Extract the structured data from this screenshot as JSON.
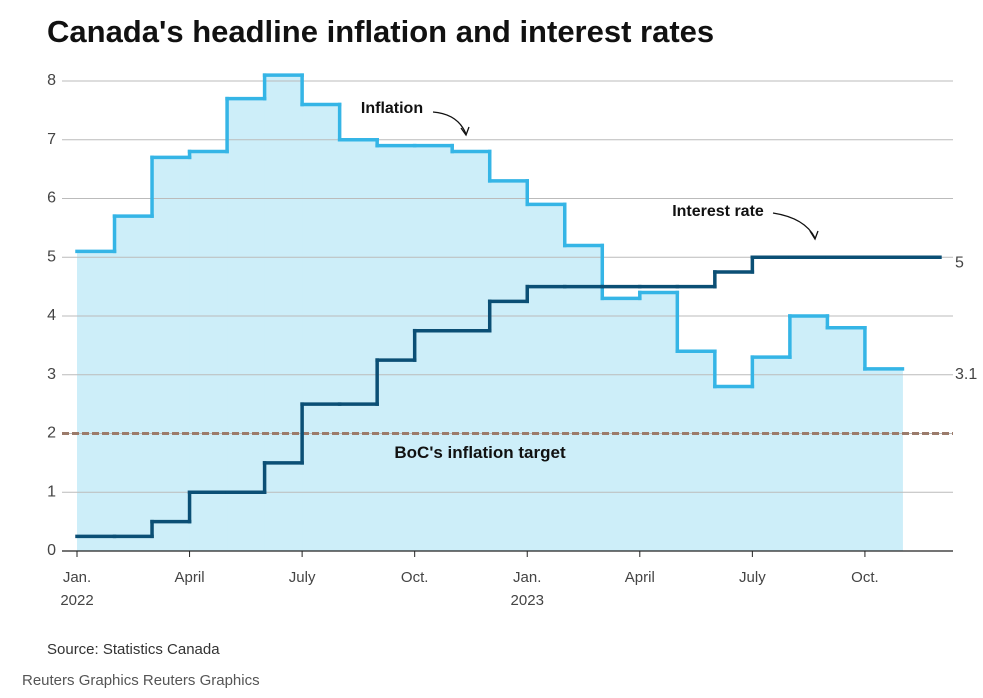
{
  "chart_data": {
    "type": "step",
    "title": "Canada's headline inflation and interest rates",
    "source": "Source: Statistics Canada",
    "credit": "Reuters Graphics Reuters Graphics",
    "categories": [
      "Jan. 2022",
      null,
      null,
      "April",
      null,
      null,
      "July",
      null,
      null,
      "Oct.",
      null,
      null,
      "Jan. 2023",
      null,
      null,
      "April",
      null,
      null,
      "July",
      null,
      null,
      "Oct.",
      null
    ],
    "series": [
      {
        "name": "Inflation",
        "color": "#35b5e6",
        "fill": "#cdeef9",
        "values": [
          5.1,
          5.7,
          6.7,
          6.8,
          7.7,
          8.1,
          7.6,
          7.0,
          6.9,
          6.9,
          6.8,
          6.3,
          5.9,
          5.2,
          4.3,
          4.4,
          3.4,
          2.8,
          3.3,
          4.0,
          3.8,
          3.1,
          null
        ]
      },
      {
        "name": "Interest rate",
        "color": "#0b4f75",
        "values": [
          0.25,
          0.25,
          0.5,
          1.0,
          1.0,
          1.5,
          2.5,
          2.5,
          3.25,
          3.75,
          3.75,
          4.25,
          4.5,
          4.5,
          4.5,
          4.5,
          4.5,
          4.75,
          5.0,
          5.0,
          5.0,
          5.0,
          5.0
        ]
      }
    ],
    "target": {
      "label": "BoC's inflation target",
      "value": 2,
      "color": "#9b7b6b"
    },
    "ylim": [
      0,
      8
    ],
    "yticks": [
      0,
      1,
      2,
      3,
      4,
      5,
      6,
      7,
      8
    ],
    "grid": true
  }
}
